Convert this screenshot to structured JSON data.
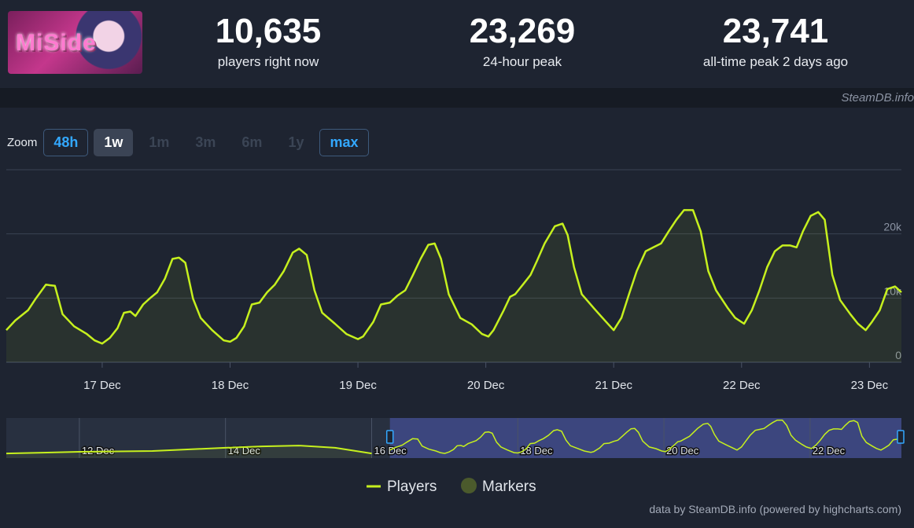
{
  "header": {
    "logo": "MiSide",
    "stats": [
      {
        "value": "10,635",
        "label": "players right now"
      },
      {
        "value": "23,269",
        "label": "24-hour peak"
      },
      {
        "value": "23,741",
        "label": "all-time peak 2 days ago"
      }
    ]
  },
  "watermark": "SteamDB.info",
  "zoom": {
    "label": "Zoom",
    "options": [
      {
        "label": "48h",
        "state": "highlighted"
      },
      {
        "label": "1w",
        "state": "active"
      },
      {
        "label": "1m",
        "state": "disabled"
      },
      {
        "label": "3m",
        "state": "disabled"
      },
      {
        "label": "6m",
        "state": "disabled"
      },
      {
        "label": "1y",
        "state": "disabled"
      },
      {
        "label": "max",
        "state": "highlighted"
      }
    ]
  },
  "chart_data": {
    "type": "line",
    "series": [
      {
        "name": "Players",
        "color": "#c6f01e",
        "x": [
          16.25,
          16.32,
          16.42,
          16.48,
          16.56,
          16.59,
          16.63,
          16.69,
          16.78,
          16.88,
          16.94,
          17.0,
          17.06,
          17.12,
          17.17,
          17.22,
          17.26,
          17.32,
          17.37,
          17.43,
          17.49,
          17.55,
          17.6,
          17.65,
          17.71,
          17.77,
          17.86,
          17.95,
          18.0,
          18.05,
          18.11,
          18.17,
          18.23,
          18.29,
          18.35,
          18.42,
          18.49,
          18.54,
          18.6,
          18.66,
          18.72,
          18.82,
          18.91,
          19.0,
          19.04,
          19.12,
          19.18,
          19.25,
          19.31,
          19.37,
          19.43,
          19.49,
          19.55,
          19.6,
          19.65,
          19.71,
          19.8,
          19.89,
          19.97,
          20.02,
          20.06,
          20.14,
          20.19,
          20.23,
          20.29,
          20.35,
          20.4,
          20.46,
          20.54,
          20.6,
          20.64,
          20.69,
          20.75,
          20.85,
          20.94,
          21.0,
          21.06,
          21.12,
          21.18,
          21.25,
          21.31,
          21.37,
          21.43,
          21.49,
          21.55,
          21.62,
          21.68,
          21.74,
          21.8,
          21.89,
          21.95,
          22.02,
          22.08,
          22.14,
          22.2,
          22.26,
          22.32,
          22.38,
          22.43,
          22.48,
          22.54,
          22.6,
          22.65,
          22.71,
          22.77,
          22.85,
          22.91,
          22.97,
          23.02,
          23.08,
          23.14,
          23.2,
          23.25
        ],
        "values": [
          5000,
          6500,
          8100,
          9900,
          12100,
          12000,
          11900,
          7500,
          5600,
          4400,
          3400,
          2900,
          3800,
          5300,
          7700,
          7900,
          7200,
          9000,
          9900,
          10900,
          13000,
          16100,
          16300,
          15500,
          9900,
          6900,
          5000,
          3400,
          3200,
          3800,
          5600,
          9000,
          9300,
          10900,
          12100,
          14200,
          17100,
          17700,
          16700,
          11200,
          7700,
          6000,
          4400,
          3600,
          4000,
          6300,
          9000,
          9300,
          10400,
          11200,
          13600,
          16100,
          18300,
          18500,
          16100,
          10600,
          6900,
          5900,
          4400,
          4000,
          5000,
          8100,
          10200,
          10600,
          12100,
          13600,
          15800,
          18500,
          21200,
          21600,
          19800,
          14800,
          10600,
          8300,
          6300,
          5000,
          6900,
          10600,
          14200,
          17300,
          17900,
          18500,
          20400,
          22200,
          23700,
          23700,
          20400,
          14200,
          11200,
          8500,
          6900,
          6000,
          8100,
          11200,
          14800,
          17300,
          18200,
          18200,
          17900,
          20400,
          22800,
          23400,
          22200,
          13600,
          9700,
          7500,
          6000,
          5000,
          6300,
          8100,
          11400,
          11800,
          10900
        ]
      }
    ],
    "xlim": [
      16.25,
      23.25
    ],
    "xticks": [
      {
        "value": 17,
        "label": "17 Dec"
      },
      {
        "value": 18,
        "label": "18 Dec"
      },
      {
        "value": 19,
        "label": "19 Dec"
      },
      {
        "value": 20,
        "label": "20 Dec"
      },
      {
        "value": 21,
        "label": "21 Dec"
      },
      {
        "value": 22,
        "label": "22 Dec"
      },
      {
        "value": 23,
        "label": "23 Dec"
      }
    ],
    "ylim": [
      0,
      30000
    ],
    "yticks": [
      0,
      {
        "value": 10000,
        "label": "10k"
      },
      {
        "value": 20000,
        "label": "20k"
      }
    ],
    "grid": true,
    "navigator": {
      "x": [
        11,
        11.5,
        12,
        13,
        14,
        14.5,
        15,
        15.5,
        16
      ],
      "values": [
        2900,
        3400,
        3900,
        4400,
        6400,
        7300,
        7800,
        6400,
        2900
      ],
      "xlim": [
        11,
        23.25
      ],
      "ylim": [
        0,
        25000
      ],
      "xticks": [
        {
          "value": 12,
          "label": "12 Dec"
        },
        {
          "value": 14,
          "label": "14 Dec"
        },
        {
          "value": 16,
          "label": "16 Dec"
        },
        {
          "value": 18,
          "label": "18 Dec"
        },
        {
          "value": 20,
          "label": "20 Dec"
        },
        {
          "value": 22,
          "label": "22 Dec"
        }
      ]
    },
    "legend": [
      {
        "name": "Players",
        "color": "#c6f01e"
      },
      {
        "name": "Markers",
        "color": "#4b5a2c"
      }
    ],
    "credits": "data by SteamDB.info (powered by highcharts.com)"
  }
}
